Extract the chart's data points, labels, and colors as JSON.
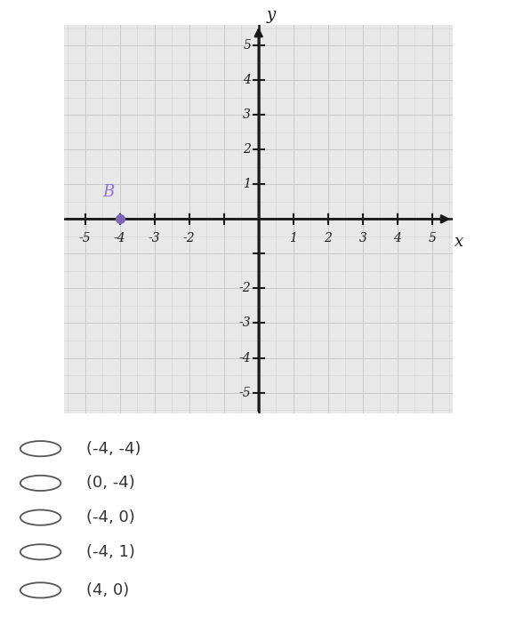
{
  "point_B": [
    -4,
    0
  ],
  "point_color": "#7B68B5",
  "point_label": "B",
  "point_label_color": "#9370DB",
  "x_range": [
    -5.6,
    5.6
  ],
  "y_range": [
    -5.6,
    5.6
  ],
  "x_tick_labels": [
    [
      -5,
      "-5"
    ],
    [
      -4,
      "-4"
    ],
    [
      -3,
      "-3"
    ],
    [
      -2,
      "-2"
    ],
    [
      1,
      "1"
    ],
    [
      2,
      "2"
    ],
    [
      3,
      "3"
    ],
    [
      4,
      "4"
    ],
    [
      5,
      "5"
    ]
  ],
  "y_tick_labels": [
    [
      -5,
      "-5"
    ],
    [
      -4,
      "-4"
    ],
    [
      -3,
      "-3"
    ],
    [
      -2,
      "-2"
    ],
    [
      1,
      "1"
    ],
    [
      2,
      "2"
    ],
    [
      3,
      "3"
    ],
    [
      4,
      "4"
    ],
    [
      5,
      "5"
    ]
  ],
  "x_ticks_all": [
    -5,
    -4,
    -3,
    -2,
    -1,
    1,
    2,
    3,
    4,
    5
  ],
  "y_ticks_all": [
    -5,
    -4,
    -3,
    -2,
    -1,
    1,
    2,
    3,
    4,
    5
  ],
  "grid_color": "#c8c8c8",
  "grid_color_minor": "#d8d8d8",
  "axis_color": "#1a1a1a",
  "plot_bg_color": "#e8e8e8",
  "choices": [
    "(-4, -4)",
    "(0, -4)",
    "(-4, 0)",
    "(-4, 1)",
    "(4, 0)"
  ],
  "figure_bg": "#ffffff",
  "tick_fontsize": 10,
  "label_fontsize": 13,
  "choice_fontsize": 13
}
